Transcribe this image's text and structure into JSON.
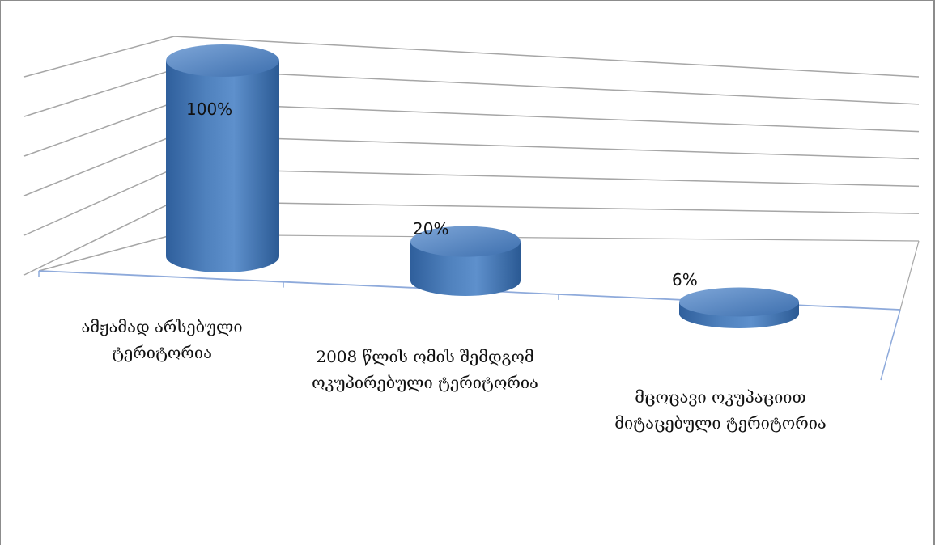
{
  "chart_data": {
    "type": "bar",
    "style": "3d-cylinder",
    "categories": [
      "ამჟამად არსებული ტერიტორია",
      "2008 წლის ომის შემდგომ ოკუპირებული ტერიტორია",
      "მცოცავი ოკუპაციით მიტაცებული ტერიტორია"
    ],
    "values": [
      100,
      20,
      6
    ],
    "data_labels": [
      "100%",
      "20%",
      "6%"
    ],
    "title": "",
    "xlabel": "",
    "ylabel": "",
    "ylim": [
      0,
      120
    ],
    "grid": true,
    "legend": "none",
    "colors": {
      "bar": "#4f81bd",
      "bar_dark": "#2c5a94",
      "bar_light": "#7ea6d8",
      "grid": "#a6a6a6",
      "base_line": "#8eaadb"
    }
  }
}
